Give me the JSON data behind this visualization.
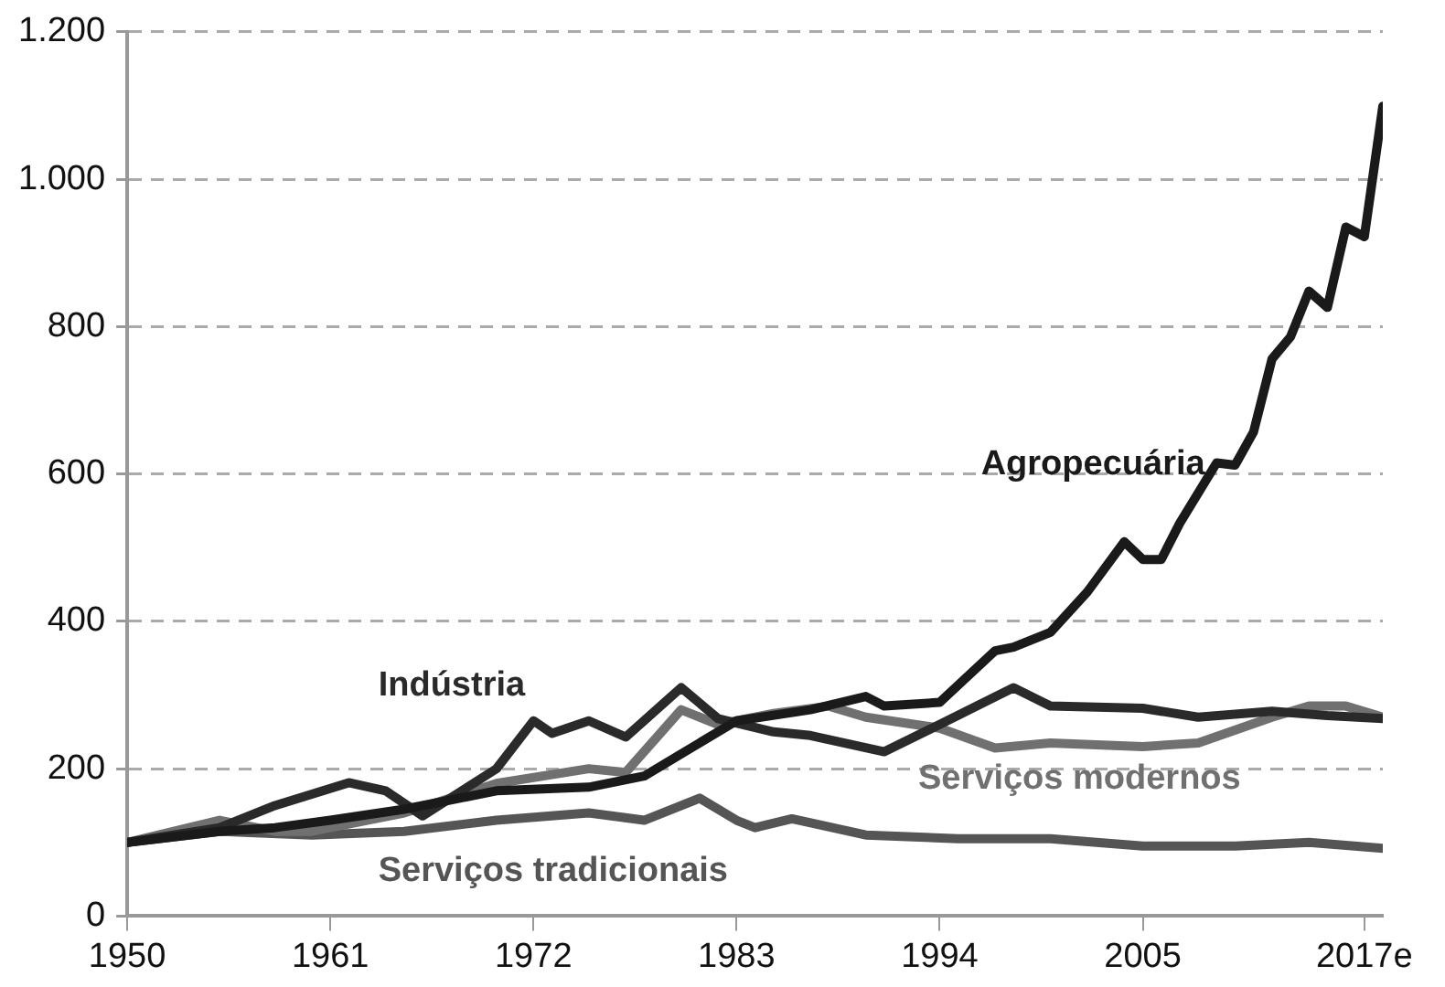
{
  "chart_data": {
    "type": "line",
    "xlim": [
      1950,
      2018
    ],
    "ylim": [
      0,
      1200
    ],
    "xticks": [
      1950,
      1961,
      1972,
      1983,
      1994,
      2005,
      {
        "value": 2017,
        "label": "2017e"
      }
    ],
    "yticks": [
      0,
      200,
      400,
      600,
      800,
      {
        "value": 1000,
        "label": "1.000"
      },
      {
        "value": 1200,
        "label": "1.200"
      }
    ],
    "grid": "y",
    "legend": false,
    "line_style": "solid",
    "marker": "none",
    "series": [
      {
        "name": "Agropecuária",
        "color": "#1a1a1a",
        "x": [
          1950,
          1955,
          1958,
          1961,
          1965,
          1970,
          1975,
          1978,
          1980,
          1983,
          1987,
          1990,
          1991,
          1994,
          1997,
          1998,
          2000,
          2002,
          2004,
          2005,
          2006,
          2007,
          2009,
          2010,
          2011,
          2012,
          2013,
          2014,
          2015,
          2016,
          2017,
          2018
        ],
        "values": [
          100,
          115,
          120,
          130,
          145,
          170,
          175,
          190,
          220,
          265,
          280,
          298,
          285,
          290,
          360,
          365,
          385,
          440,
          508,
          484,
          484,
          533,
          615,
          612,
          657,
          756,
          786,
          848,
          826,
          935,
          922,
          1099
        ]
      },
      {
        "name": "Indústria",
        "color": "#2a2a2a",
        "x": [
          1950,
          1955,
          1958,
          1962,
          1964,
          1966,
          1970,
          1972,
          1973,
          1975,
          1977,
          1980,
          1982,
          1985,
          1987,
          1991,
          1994,
          1998,
          2000,
          2005,
          2008,
          2012,
          2015,
          2018
        ],
        "values": [
          100,
          120,
          150,
          181,
          170,
          136,
          200,
          265,
          248,
          265,
          243,
          310,
          268,
          250,
          245,
          223,
          260,
          310,
          285,
          282,
          270,
          278,
          272,
          268
        ]
      },
      {
        "name": "Serviços modernos",
        "color": "#707070",
        "x": [
          1950,
          1955,
          1958,
          1960,
          1965,
          1970,
          1975,
          1977,
          1980,
          1982,
          1985,
          1988,
          1990,
          1994,
          1997,
          2000,
          2005,
          2008,
          2012,
          2014,
          2016,
          2018
        ],
        "values": [
          100,
          130,
          115,
          115,
          140,
          180,
          200,
          195,
          280,
          260,
          275,
          285,
          270,
          255,
          228,
          235,
          230,
          235,
          270,
          285,
          285,
          270
        ]
      },
      {
        "name": "Serviços tradicionais",
        "color": "#555555",
        "x": [
          1950,
          1955,
          1960,
          1965,
          1970,
          1975,
          1978,
          1981,
          1983,
          1984,
          1986,
          1990,
          1995,
          2000,
          2005,
          2010,
          2014,
          2018
        ],
        "values": [
          100,
          115,
          110,
          115,
          130,
          140,
          130,
          160,
          130,
          120,
          132,
          110,
          105,
          105,
          95,
          95,
          100,
          92
        ]
      }
    ]
  }
}
